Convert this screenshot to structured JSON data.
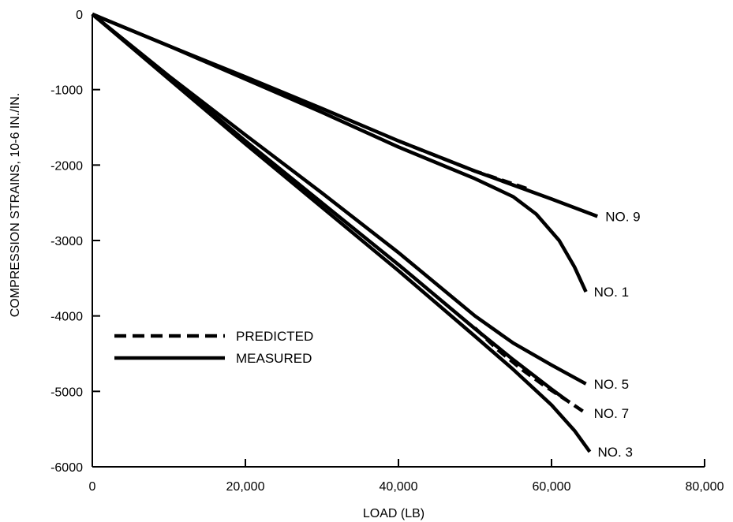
{
  "chart_data": {
    "type": "line",
    "title": "",
    "xlabel": "LOAD (LB)",
    "ylabel": "COMPRESSION STRAINS, 10-6 IN./IN.",
    "xlim": [
      0,
      80000
    ],
    "ylim": [
      -6000,
      0
    ],
    "x_ticks": [
      0,
      20000,
      40000,
      60000,
      80000
    ],
    "x_tick_labels": [
      "0",
      "20,000",
      "40,000",
      "60,000",
      "80,000"
    ],
    "y_ticks": [
      0,
      -1000,
      -2000,
      -3000,
      -4000,
      -5000,
      -6000
    ],
    "y_tick_labels": [
      "0",
      "-1000",
      "-2000",
      "-3000",
      "-4000",
      "-5000",
      "-6000"
    ],
    "grid": false,
    "legend": {
      "position": "lower-left",
      "entries": [
        {
          "label": "PREDICTED",
          "style": "dashed"
        },
        {
          "label": "MEASURED",
          "style": "solid"
        }
      ]
    },
    "series": [
      {
        "name": "NO. 9",
        "style": "solid",
        "x": [
          0,
          10000,
          20000,
          30000,
          40000,
          50000,
          60000,
          66000
        ],
        "y": [
          0,
          -420,
          -830,
          -1250,
          -1680,
          -2080,
          -2450,
          -2680
        ]
      },
      {
        "name": "NO. 9",
        "style": "dashed",
        "x": [
          40000,
          45000,
          50000,
          55000,
          57000
        ],
        "y": [
          -1680,
          -1880,
          -2080,
          -2250,
          -2320
        ]
      },
      {
        "name": "NO. 1",
        "style": "solid",
        "x": [
          0,
          10000,
          20000,
          30000,
          40000,
          45000,
          50000,
          55000,
          58000,
          61000,
          63000,
          64500
        ],
        "y": [
          0,
          -420,
          -860,
          -1300,
          -1760,
          -1970,
          -2180,
          -2420,
          -2650,
          -3000,
          -3350,
          -3680
        ]
      },
      {
        "name": "NO. 5",
        "style": "solid",
        "x": [
          0,
          10000,
          20000,
          30000,
          40000,
          50000,
          55000,
          60000,
          64500
        ],
        "y": [
          0,
          -820,
          -1600,
          -2370,
          -3160,
          -4000,
          -4360,
          -4650,
          -4900
        ]
      },
      {
        "name": "NO. 7",
        "style": "dashed",
        "x": [
          50000,
          53000,
          56000,
          59000,
          62000,
          64500
        ],
        "y": [
          -4160,
          -4450,
          -4700,
          -4920,
          -5120,
          -5290
        ]
      },
      {
        "name": "NO. 7",
        "style": "solid",
        "x": [
          0,
          10000,
          20000,
          30000,
          40000,
          50000,
          55000,
          60000,
          62000
        ],
        "y": [
          0,
          -840,
          -1680,
          -2500,
          -3320,
          -4170,
          -4580,
          -4970,
          -5120
        ]
      },
      {
        "name": "NO. 3",
        "style": "solid",
        "x": [
          0,
          10000,
          20000,
          30000,
          40000,
          50000,
          55000,
          60000,
          63000,
          65000
        ],
        "y": [
          0,
          -860,
          -1720,
          -2560,
          -3400,
          -4270,
          -4710,
          -5180,
          -5520,
          -5800
        ]
      }
    ],
    "annotations": [
      {
        "text": "NO. 9",
        "x": 66000,
        "y": -2680
      },
      {
        "text": "NO. 1",
        "x": 64500,
        "y": -3680
      },
      {
        "text": "NO. 5",
        "x": 64500,
        "y": -4900
      },
      {
        "text": "NO. 7",
        "x": 64500,
        "y": -5290
      },
      {
        "text": "NO. 3",
        "x": 65000,
        "y": -5800
      }
    ]
  }
}
